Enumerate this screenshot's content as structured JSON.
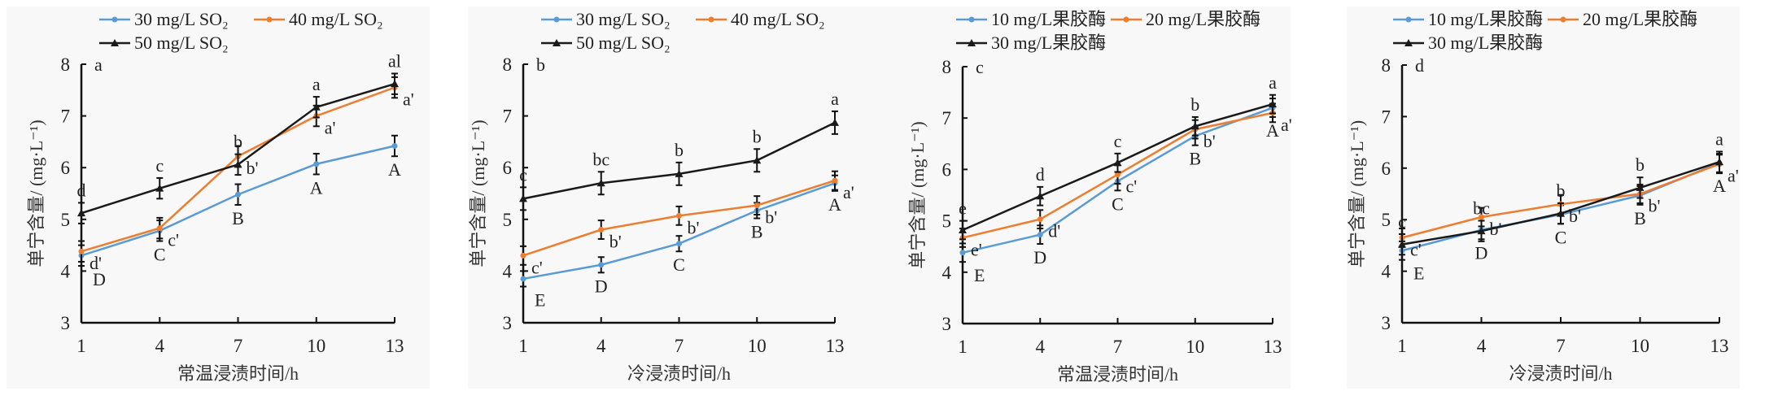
{
  "colors": {
    "series1": "#5b9bd5",
    "series2": "#ed7d31",
    "series3": "#1a1a1a"
  },
  "chart_data": [
    {
      "type": "line",
      "panel_letter": "a",
      "xlabel": "常温浸渍时间/h",
      "ylabel": "单宁含量/ (mg·L⁻¹)",
      "x": [
        1,
        4,
        7,
        10,
        13
      ],
      "xticks": [
        "1",
        "4",
        "7",
        "10",
        "13"
      ],
      "ylim": [
        3,
        8
      ],
      "yticks": [
        "3",
        "4",
        "5",
        "6",
        "7",
        "8"
      ],
      "grid": false,
      "legend": "top",
      "series": [
        {
          "name": "30 mg/L SO₂",
          "values": [
            4.3,
            4.78,
            5.48,
            6.07,
            6.42
          ],
          "error": 0.2,
          "marker": "circle"
        },
        {
          "name": "40 mg/L SO₂",
          "values": [
            4.38,
            4.83,
            6.22,
            7.0,
            7.55
          ],
          "error": 0.2,
          "marker": "circle"
        },
        {
          "name": "50 mg/L SO₂",
          "values": [
            5.12,
            5.6,
            6.06,
            7.17,
            7.62
          ],
          "error": 0.2,
          "marker": "triangle"
        }
      ],
      "annotations": {
        "upper": [
          "d",
          "c",
          "b",
          "a",
          "al"
        ],
        "prime": [
          "d'",
          "c'",
          "b'",
          "a'",
          "a'"
        ],
        "capital": [
          "D",
          "C",
          "B",
          "A",
          "A"
        ]
      }
    },
    {
      "type": "line",
      "panel_letter": "b",
      "xlabel": "冷浸渍时间/h",
      "ylabel": "单宁含量/ (mg·L⁻¹)",
      "x": [
        1,
        4,
        7,
        10,
        13
      ],
      "xticks": [
        "1",
        "4",
        "7",
        "10",
        "13"
      ],
      "ylim": [
        3,
        8
      ],
      "yticks": [
        "3",
        "4",
        "5",
        "6",
        "7",
        "8"
      ],
      "grid": false,
      "legend": "top",
      "series": [
        {
          "name": "30 mg/L SO₂",
          "values": [
            3.85,
            4.12,
            4.53,
            5.17,
            5.7
          ],
          "error": 0.15,
          "marker": "circle"
        },
        {
          "name": "40 mg/L SO₂",
          "values": [
            4.3,
            4.8,
            5.07,
            5.27,
            5.75
          ],
          "error": 0.18,
          "marker": "circle"
        },
        {
          "name": "50 mg/L SO₂",
          "values": [
            5.4,
            5.7,
            5.88,
            6.14,
            6.87
          ],
          "error": 0.22,
          "marker": "triangle"
        }
      ],
      "annotations": {
        "upper": [
          "c",
          "bc",
          "b",
          "b",
          "a"
        ],
        "prime": [
          "c'",
          "b'",
          "b'",
          "b'",
          "a'"
        ],
        "capital": [
          "E",
          "D",
          "C",
          "B",
          "A"
        ]
      }
    },
    {
      "type": "line",
      "panel_letter": "c",
      "xlabel": "常温浸渍时间/h",
      "ylabel": "单宁含量/ (mg·L⁻¹)",
      "x": [
        1,
        4,
        7,
        10,
        13
      ],
      "xticks": [
        "1",
        "4",
        "7",
        "10",
        "13"
      ],
      "ylim": [
        3,
        8
      ],
      "yticks": [
        "3",
        "4",
        "5",
        "6",
        "7",
        "8"
      ],
      "grid": false,
      "legend": "top",
      "series": [
        {
          "name": "10 mg/L果胶酶",
          "values": [
            4.38,
            4.73,
            5.77,
            6.65,
            7.2
          ],
          "error": 0.18,
          "marker": "circle"
        },
        {
          "name": "20 mg/L果胶酶",
          "values": [
            4.67,
            5.03,
            5.9,
            6.78,
            7.1
          ],
          "error": 0.18,
          "marker": "circle"
        },
        {
          "name": "30 mg/L果胶酶",
          "values": [
            4.82,
            5.48,
            6.13,
            6.84,
            7.27
          ],
          "error": 0.18,
          "marker": "triangle"
        }
      ],
      "annotations": {
        "upper": [
          "e",
          "d",
          "c",
          "b",
          "a"
        ],
        "prime": [
          "e'",
          "d'",
          "c'",
          "b'",
          "a'"
        ],
        "capital": [
          "E",
          "D",
          "C",
          "B",
          "A"
        ]
      }
    },
    {
      "type": "line",
      "panel_letter": "d",
      "xlabel": "冷浸渍时间/h",
      "ylabel": "单宁含量/ (mg·L⁻¹)",
      "x": [
        1,
        4,
        7,
        10,
        13
      ],
      "xticks": [
        "1",
        "4",
        "7",
        "10",
        "13"
      ],
      "ylim": [
        3,
        8
      ],
      "yticks": [
        "3",
        "4",
        "5",
        "6",
        "7",
        "8"
      ],
      "grid": false,
      "legend": "top",
      "series": [
        {
          "name": "10 mg/L果胶酶",
          "values": [
            4.4,
            4.8,
            5.1,
            5.47,
            6.1
          ],
          "error": 0.18,
          "marker": "circle"
        },
        {
          "name": "20 mg/L果胶酶",
          "values": [
            4.65,
            5.05,
            5.3,
            5.5,
            6.08
          ],
          "error": 0.18,
          "marker": "circle"
        },
        {
          "name": "30 mg/L果胶酶",
          "values": [
            4.52,
            4.78,
            5.12,
            5.62,
            6.12
          ],
          "error": 0.2,
          "marker": "triangle"
        }
      ],
      "annotations": {
        "upper": [
          "c",
          "bc",
          "b",
          "b",
          "a"
        ],
        "prime": [
          "c'",
          "b'",
          "b'",
          "b'",
          "a'"
        ],
        "capital": [
          "E",
          "D",
          "C",
          "B",
          "A"
        ]
      }
    }
  ]
}
